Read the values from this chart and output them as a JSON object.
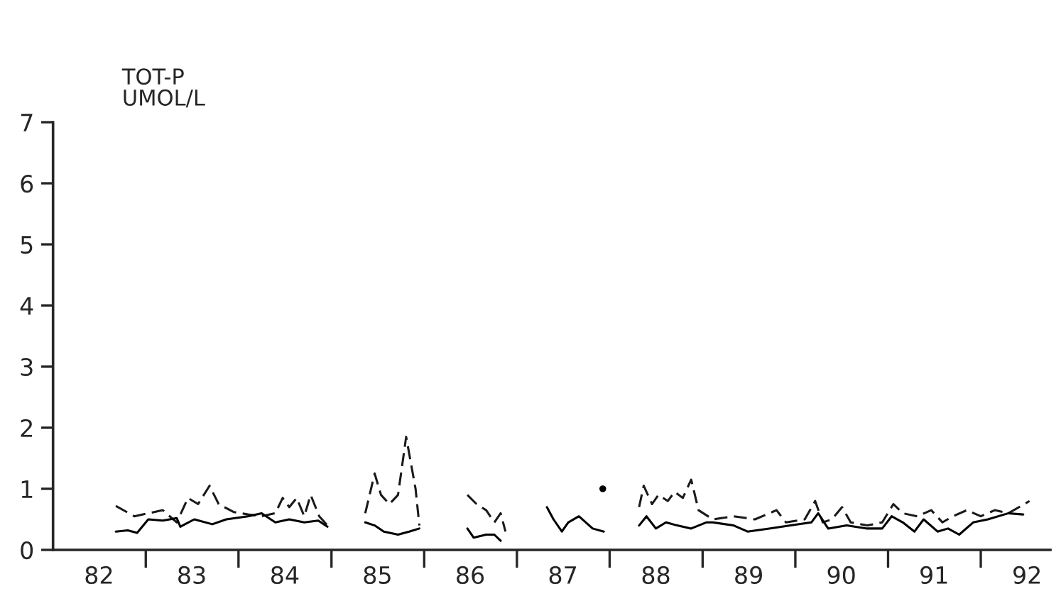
{
  "chart_data": {
    "type": "line",
    "ylabel": "TOT-P\nUMOL/L",
    "xlim": [
      "1982-01-01",
      "1992-10-01"
    ],
    "ylim": [
      0,
      7
    ],
    "yticks": [
      0,
      1,
      2,
      3,
      4,
      5,
      6,
      7
    ],
    "xticks": [
      {
        "value": "1983-01-01",
        "label": null
      },
      {
        "value": "1984-01-01",
        "label": null
      },
      {
        "value": "1985-01-01",
        "label": null
      },
      {
        "value": "1986-01-01",
        "label": null
      },
      {
        "value": "1987-01-01",
        "label": null
      },
      {
        "value": "1988-01-01",
        "label": null
      },
      {
        "value": "1989-01-01",
        "label": null
      },
      {
        "value": "1990-01-01",
        "label": null
      },
      {
        "value": "1991-01-01",
        "label": null
      },
      {
        "value": "1992-01-01",
        "label": null
      },
      {
        "value": "1982-07-01",
        "label": "82"
      },
      {
        "value": "1983-07-01",
        "label": "83"
      },
      {
        "value": "1984-07-01",
        "label": "84"
      },
      {
        "value": "1985-07-01",
        "label": "85"
      },
      {
        "value": "1986-07-01",
        "label": "86"
      },
      {
        "value": "1987-07-01",
        "label": "87"
      },
      {
        "value": "1988-07-01",
        "label": "88"
      },
      {
        "value": "1989-07-01",
        "label": "89"
      },
      {
        "value": "1990-07-01",
        "label": "90"
      },
      {
        "value": "1991-07-01",
        "label": "91"
      },
      {
        "value": "1992-07-01",
        "label": "92"
      }
    ],
    "grid": false,
    "legend": false,
    "series": [
      {
        "color": "#1a1a1a",
        "line_style": "dashed",
        "x": [
          "1982-09-05",
          "1982-11-17",
          "1983-01-11",
          "1983-03-09",
          "1983-05-03",
          "1983-06-16",
          "1983-07-26",
          "1983-09-09",
          "1983-10-15",
          "1983-12-13",
          "1984-02-07",
          "1984-04-01",
          "1984-05-25",
          "1984-06-23",
          "1984-07-19",
          "1984-08-17",
          "1984-09-16",
          "1984-10-11",
          "1984-11-14",
          "1984-12-16",
          "1985-03-13",
          "1985-05-14",
          "1985-06-20",
          "1985-07-15",
          "1985-08-17",
          "1985-09-20",
          "1985-10-22",
          "1985-11-28",
          "1985-12-13",
          "1986-03-13",
          "1986-06-20",
          "1986-07-26",
          "1986-09-02",
          "1986-10-04",
          "1986-10-29",
          "1986-11-17",
          "1987-02-07",
          "1988-04-26",
          "1988-05-14",
          "1988-06-16",
          "1988-07-11",
          "1988-08-17",
          "1988-09-13",
          "1988-10-15",
          "1988-11-17",
          "1988-12-16",
          "1989-02-10",
          "1989-05-03",
          "1989-07-26",
          "1989-10-19",
          "1989-11-25",
          "1990-02-07",
          "1990-03-20",
          "1990-04-19",
          "1990-05-25",
          "1990-07-04",
          "1990-08-07",
          "1990-10-11",
          "1990-12-09",
          "1991-01-22",
          "1991-02-28",
          "1991-04-26",
          "1991-06-20",
          "1991-08-03",
          "1991-09-13",
          "1991-11-07",
          "1992-01-01",
          "1992-02-25",
          "1992-04-19",
          "1992-07-11"
        ],
        "values": [
          0.72,
          0.55,
          0.6,
          0.65,
          0.45,
          0.85,
          0.75,
          1.05,
          0.75,
          0.62,
          0.58,
          0.55,
          0.6,
          0.85,
          0.7,
          0.85,
          0.55,
          0.9,
          0.55,
          0.4,
          null,
          0.6,
          1.25,
          0.9,
          0.75,
          0.9,
          1.85,
          1.0,
          0.4,
          null,
          0.9,
          0.75,
          0.65,
          0.45,
          0.6,
          0.3,
          null,
          0.7,
          1.05,
          0.75,
          0.9,
          0.8,
          0.95,
          0.85,
          1.15,
          0.65,
          0.5,
          0.55,
          0.5,
          0.65,
          0.45,
          0.5,
          0.8,
          0.45,
          0.5,
          0.7,
          0.45,
          0.4,
          0.45,
          0.75,
          0.6,
          0.55,
          0.65,
          0.45,
          0.55,
          0.65,
          0.55,
          0.65,
          0.6,
          0.8
        ]
      },
      {
        "color": "#000000",
        "line_style": "solid",
        "x": [
          "1982-09-05",
          "1982-10-22",
          "1982-11-28",
          "1983-01-11",
          "1983-03-09",
          "1983-05-03",
          "1983-05-17",
          "1983-07-11",
          "1983-09-20",
          "1983-11-14",
          "1984-02-07",
          "1984-04-01",
          "1984-05-25",
          "1984-07-19",
          "1984-09-16",
          "1984-11-10",
          "1984-12-16",
          "1985-03-13",
          "1985-05-14",
          "1985-06-20",
          "1985-07-26",
          "1985-09-20",
          "1985-11-03",
          "1985-12-13",
          "1986-03-13",
          "1986-06-20",
          "1986-07-15",
          "1986-09-02",
          "1986-10-04",
          "1986-10-29",
          "1987-02-07",
          "1987-04-29",
          "1987-05-25",
          "1987-06-27",
          "1987-07-22",
          "1987-09-02",
          "1987-10-26",
          "1987-12-09",
          "1988-02-07",
          "1988-04-26",
          "1988-05-25",
          "1988-07-01",
          "1988-08-10",
          "1988-09-23",
          "1988-11-17",
          "1989-01-15",
          "1989-02-10",
          "1989-05-03",
          "1989-06-27",
          "1989-09-20",
          "1989-12-13",
          "1990-03-05",
          "1990-04-01",
          "1990-05-10",
          "1990-07-22",
          "1990-10-11",
          "1990-12-09",
          "1991-01-15",
          "1991-02-28",
          "1991-04-15",
          "1991-05-21",
          "1991-07-15",
          "1991-08-25",
          "1991-10-08",
          "1991-12-02",
          "1992-01-29",
          "1992-04-19",
          "1992-06-16"
        ],
        "values": [
          0.3,
          0.32,
          0.28,
          0.5,
          0.48,
          0.52,
          0.38,
          0.5,
          0.42,
          0.5,
          0.55,
          0.6,
          0.45,
          0.5,
          0.45,
          0.48,
          0.38,
          null,
          0.45,
          0.4,
          0.3,
          0.25,
          0.3,
          0.35,
          null,
          0.35,
          0.2,
          0.25,
          0.25,
          0.15,
          null,
          0.7,
          0.5,
          0.3,
          0.45,
          0.55,
          0.35,
          0.3,
          null,
          0.4,
          0.55,
          0.35,
          0.45,
          0.4,
          0.35,
          0.45,
          0.45,
          0.4,
          0.3,
          0.35,
          0.4,
          0.45,
          0.6,
          0.35,
          0.4,
          0.35,
          0.35,
          0.55,
          0.45,
          0.3,
          0.5,
          0.3,
          0.35,
          0.25,
          0.45,
          0.5,
          0.6,
          0.58
        ]
      },
      {
        "type": "scatter",
        "color": "#000000",
        "marker": "circle",
        "x": [
          "1987-12-05"
        ],
        "values": [
          1.0
        ]
      }
    ]
  }
}
